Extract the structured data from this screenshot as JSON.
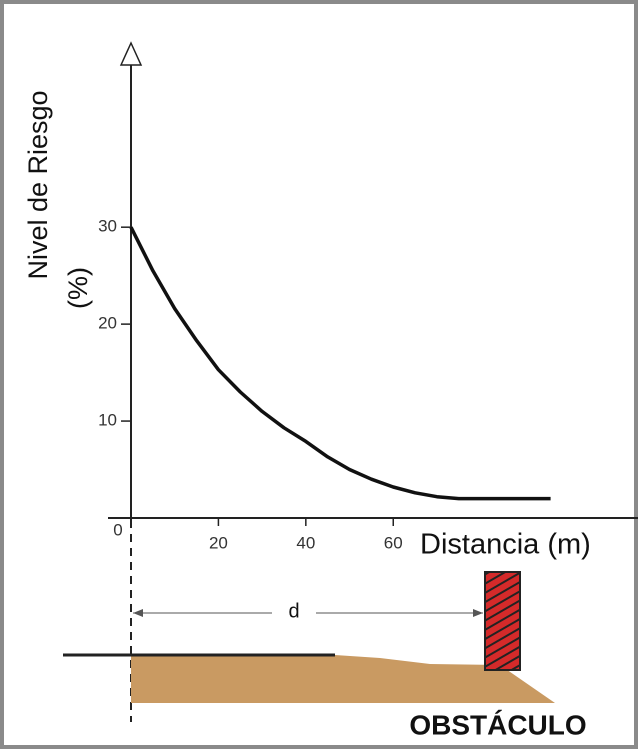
{
  "chart_data": {
    "type": "line",
    "y_label": [
      "Nivel de Riesgo",
      "(%)"
    ],
    "x_label": "Distancia (m)",
    "x": [
      0,
      5,
      10,
      15,
      20,
      25,
      30,
      35,
      40,
      45,
      50,
      55,
      60,
      65,
      70,
      75,
      96
    ],
    "values": [
      30,
      25.5,
      21.6,
      18.3,
      15.3,
      13,
      11,
      9.3,
      7.9,
      6.3,
      5,
      4,
      3.2,
      2.6,
      2.2,
      2,
      2
    ],
    "color": "#111111",
    "xlim": [
      0,
      116
    ],
    "ylim": [
      0,
      49
    ],
    "xticks": [
      0,
      20,
      40,
      60
    ],
    "yticks": [
      10,
      20,
      30
    ],
    "diagram": {
      "distance_label": "d",
      "obstacle_label": "OBSTÁCULO"
    }
  }
}
